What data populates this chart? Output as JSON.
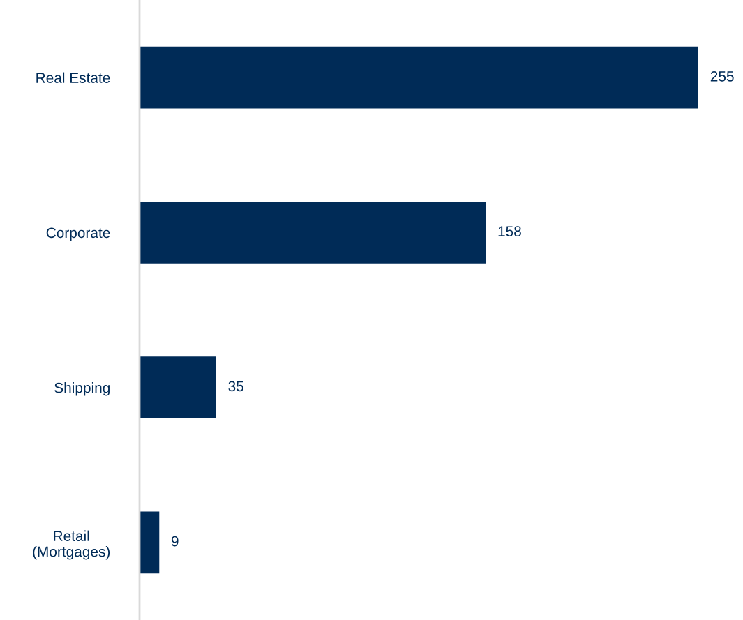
{
  "chart_data": {
    "type": "bar",
    "orientation": "horizontal",
    "categories": [
      "Real Estate",
      "Corporate",
      "Shipping",
      "Retail\n(Mortgages)"
    ],
    "values": [
      255,
      158,
      35,
      9
    ],
    "color": "#002b57",
    "data_labels": true,
    "grid": false,
    "legend": false,
    "tick_labels": "y"
  }
}
